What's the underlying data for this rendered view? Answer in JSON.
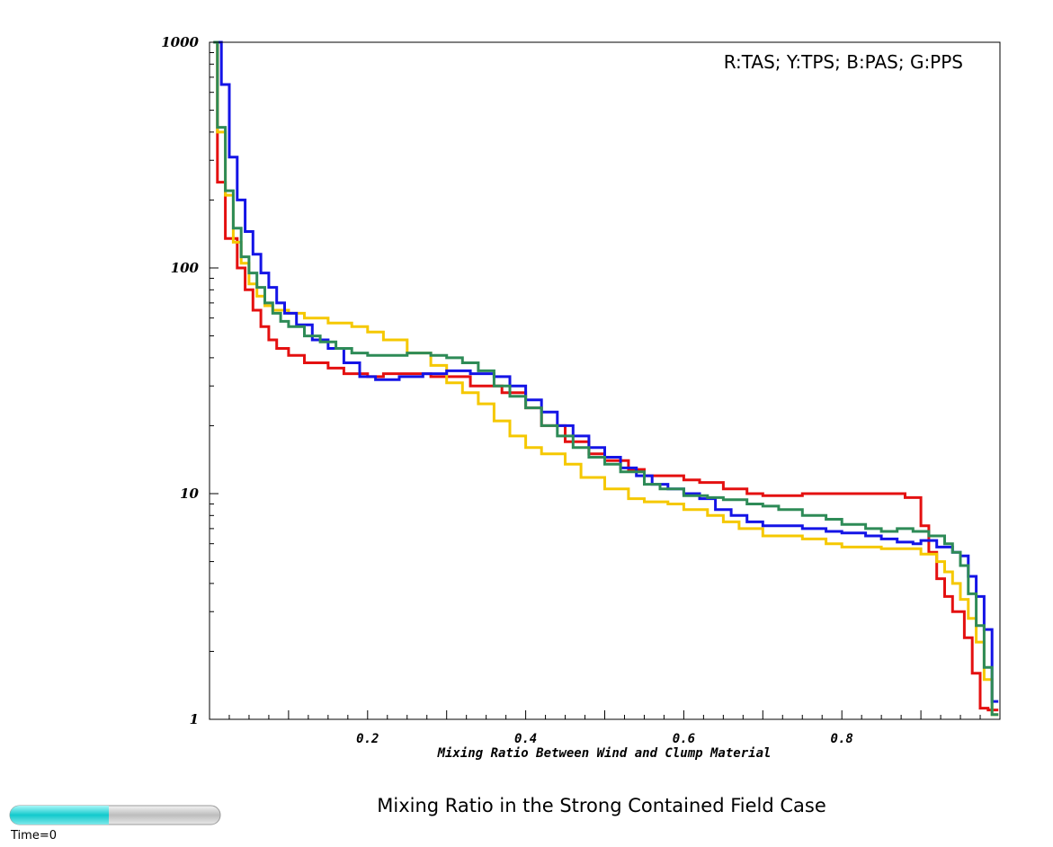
{
  "chart_data": {
    "type": "line",
    "step": true,
    "title": "Mixing Ratio in the Strong Contained Field Case",
    "xlabel": "Mixing Ratio Between Wind and Clump Material",
    "ylabel": "",
    "legend_text": "R:TAS; Y:TPS; B:PAS; G:PPS",
    "legend_position": "top-right",
    "xlim": [
      0,
      1
    ],
    "ylim": [
      1,
      1000
    ],
    "yscale": "log",
    "grid": false,
    "x_ticks": [
      "0.2",
      "0.4",
      "0.6",
      "0.8"
    ],
    "x_tick_values": [
      0.2,
      0.4,
      0.6,
      0.8
    ],
    "y_ticks": [
      "1",
      "10",
      "100",
      "1000"
    ],
    "y_tick_values": [
      1,
      10,
      100,
      1000
    ],
    "series": [
      {
        "color": "#e41010",
        "points": [
          [
            0.005,
            1000
          ],
          [
            0.01,
            240
          ],
          [
            0.02,
            135
          ],
          [
            0.035,
            100
          ],
          [
            0.045,
            80
          ],
          [
            0.055,
            65
          ],
          [
            0.065,
            55
          ],
          [
            0.075,
            48
          ],
          [
            0.085,
            44
          ],
          [
            0.1,
            41
          ],
          [
            0.12,
            38
          ],
          [
            0.15,
            36
          ],
          [
            0.17,
            34
          ],
          [
            0.2,
            33
          ],
          [
            0.22,
            34
          ],
          [
            0.28,
            33
          ],
          [
            0.33,
            30
          ],
          [
            0.37,
            28
          ],
          [
            0.4,
            24
          ],
          [
            0.42,
            20
          ],
          [
            0.45,
            17
          ],
          [
            0.48,
            15
          ],
          [
            0.5,
            14
          ],
          [
            0.53,
            12.8
          ],
          [
            0.55,
            12
          ],
          [
            0.6,
            11.5
          ],
          [
            0.62,
            11.2
          ],
          [
            0.65,
            10.5
          ],
          [
            0.68,
            10
          ],
          [
            0.7,
            9.8
          ],
          [
            0.75,
            10
          ],
          [
            0.8,
            10
          ],
          [
            0.83,
            10
          ],
          [
            0.88,
            9.6
          ],
          [
            0.9,
            7.2
          ],
          [
            0.91,
            5.5
          ],
          [
            0.92,
            4.2
          ],
          [
            0.93,
            3.5
          ],
          [
            0.94,
            3
          ],
          [
            0.955,
            2.3
          ],
          [
            0.965,
            1.6
          ],
          [
            0.975,
            1.12
          ],
          [
            0.985,
            1.1
          ],
          [
            0.998,
            1.1
          ]
        ]
      },
      {
        "color": "#f5c800",
        "points": [
          [
            0.005,
            1000
          ],
          [
            0.01,
            400
          ],
          [
            0.02,
            210
          ],
          [
            0.03,
            130
          ],
          [
            0.04,
            105
          ],
          [
            0.05,
            85
          ],
          [
            0.06,
            75
          ],
          [
            0.07,
            68
          ],
          [
            0.08,
            65
          ],
          [
            0.1,
            63
          ],
          [
            0.12,
            60
          ],
          [
            0.15,
            57
          ],
          [
            0.18,
            55
          ],
          [
            0.2,
            52
          ],
          [
            0.22,
            48
          ],
          [
            0.25,
            42
          ],
          [
            0.28,
            37
          ],
          [
            0.3,
            31
          ],
          [
            0.32,
            28
          ],
          [
            0.34,
            25
          ],
          [
            0.36,
            21
          ],
          [
            0.38,
            18
          ],
          [
            0.4,
            16
          ],
          [
            0.42,
            15
          ],
          [
            0.45,
            13.5
          ],
          [
            0.47,
            11.8
          ],
          [
            0.5,
            10.5
          ],
          [
            0.53,
            9.5
          ],
          [
            0.55,
            9.2
          ],
          [
            0.58,
            9
          ],
          [
            0.6,
            8.5
          ],
          [
            0.63,
            8
          ],
          [
            0.65,
            7.5
          ],
          [
            0.67,
            7
          ],
          [
            0.7,
            6.5
          ],
          [
            0.75,
            6.3
          ],
          [
            0.78,
            6
          ],
          [
            0.8,
            5.8
          ],
          [
            0.85,
            5.7
          ],
          [
            0.88,
            5.7
          ],
          [
            0.9,
            5.4
          ],
          [
            0.92,
            5
          ],
          [
            0.93,
            4.5
          ],
          [
            0.94,
            4
          ],
          [
            0.95,
            3.4
          ],
          [
            0.96,
            2.8
          ],
          [
            0.97,
            2.2
          ],
          [
            0.98,
            1.5
          ],
          [
            0.99,
            1.05
          ],
          [
            0.998,
            1.05
          ]
        ]
      },
      {
        "color": "#1414e6",
        "points": [
          [
            0.005,
            1000
          ],
          [
            0.015,
            650
          ],
          [
            0.025,
            310
          ],
          [
            0.035,
            200
          ],
          [
            0.045,
            145
          ],
          [
            0.055,
            115
          ],
          [
            0.065,
            95
          ],
          [
            0.075,
            82
          ],
          [
            0.085,
            70
          ],
          [
            0.095,
            63
          ],
          [
            0.11,
            56
          ],
          [
            0.13,
            48
          ],
          [
            0.15,
            44
          ],
          [
            0.17,
            38
          ],
          [
            0.19,
            33
          ],
          [
            0.21,
            32
          ],
          [
            0.24,
            33
          ],
          [
            0.27,
            34
          ],
          [
            0.3,
            35
          ],
          [
            0.33,
            34
          ],
          [
            0.36,
            33
          ],
          [
            0.38,
            30
          ],
          [
            0.4,
            26
          ],
          [
            0.42,
            23
          ],
          [
            0.44,
            20
          ],
          [
            0.46,
            18
          ],
          [
            0.48,
            16
          ],
          [
            0.5,
            14.5
          ],
          [
            0.52,
            13
          ],
          [
            0.54,
            12
          ],
          [
            0.56,
            11
          ],
          [
            0.58,
            10.5
          ],
          [
            0.6,
            10
          ],
          [
            0.62,
            9.5
          ],
          [
            0.64,
            8.5
          ],
          [
            0.66,
            8
          ],
          [
            0.68,
            7.5
          ],
          [
            0.7,
            7.2
          ],
          [
            0.75,
            7
          ],
          [
            0.78,
            6.8
          ],
          [
            0.8,
            6.7
          ],
          [
            0.83,
            6.5
          ],
          [
            0.85,
            6.3
          ],
          [
            0.87,
            6.1
          ],
          [
            0.89,
            6
          ],
          [
            0.9,
            6.2
          ],
          [
            0.92,
            5.8
          ],
          [
            0.94,
            5.5
          ],
          [
            0.95,
            5.3
          ],
          [
            0.96,
            4.3
          ],
          [
            0.97,
            3.5
          ],
          [
            0.98,
            2.5
          ],
          [
            0.99,
            1.2
          ],
          [
            0.998,
            1.2
          ]
        ]
      },
      {
        "color": "#2e8b57",
        "points": [
          [
            0.005,
            1000
          ],
          [
            0.01,
            420
          ],
          [
            0.02,
            220
          ],
          [
            0.03,
            150
          ],
          [
            0.04,
            112
          ],
          [
            0.05,
            95
          ],
          [
            0.06,
            82
          ],
          [
            0.07,
            70
          ],
          [
            0.08,
            63
          ],
          [
            0.09,
            58
          ],
          [
            0.1,
            55
          ],
          [
            0.12,
            50
          ],
          [
            0.14,
            47
          ],
          [
            0.16,
            44
          ],
          [
            0.18,
            42
          ],
          [
            0.2,
            41
          ],
          [
            0.22,
            41
          ],
          [
            0.25,
            42
          ],
          [
            0.28,
            41
          ],
          [
            0.3,
            40
          ],
          [
            0.32,
            38
          ],
          [
            0.34,
            35
          ],
          [
            0.36,
            30
          ],
          [
            0.38,
            27
          ],
          [
            0.4,
            24
          ],
          [
            0.42,
            20
          ],
          [
            0.44,
            18
          ],
          [
            0.46,
            16
          ],
          [
            0.48,
            14.5
          ],
          [
            0.5,
            13.5
          ],
          [
            0.52,
            12.5
          ],
          [
            0.55,
            11
          ],
          [
            0.57,
            10.5
          ],
          [
            0.6,
            9.8
          ],
          [
            0.63,
            9.6
          ],
          [
            0.65,
            9.4
          ],
          [
            0.68,
            9
          ],
          [
            0.7,
            8.8
          ],
          [
            0.72,
            8.5
          ],
          [
            0.75,
            8
          ],
          [
            0.78,
            7.7
          ],
          [
            0.8,
            7.3
          ],
          [
            0.83,
            7
          ],
          [
            0.85,
            6.8
          ],
          [
            0.87,
            7
          ],
          [
            0.89,
            6.8
          ],
          [
            0.91,
            6.5
          ],
          [
            0.93,
            6
          ],
          [
            0.94,
            5.5
          ],
          [
            0.95,
            4.8
          ],
          [
            0.96,
            3.6
          ],
          [
            0.97,
            2.6
          ],
          [
            0.98,
            1.7
          ],
          [
            0.99,
            1.05
          ],
          [
            0.998,
            1.05
          ]
        ]
      }
    ]
  },
  "time_label": "Time=0",
  "time_slider": {
    "fraction": 0.47,
    "fill_color": "#19d7d9",
    "track_color": "#c8c8c8"
  }
}
